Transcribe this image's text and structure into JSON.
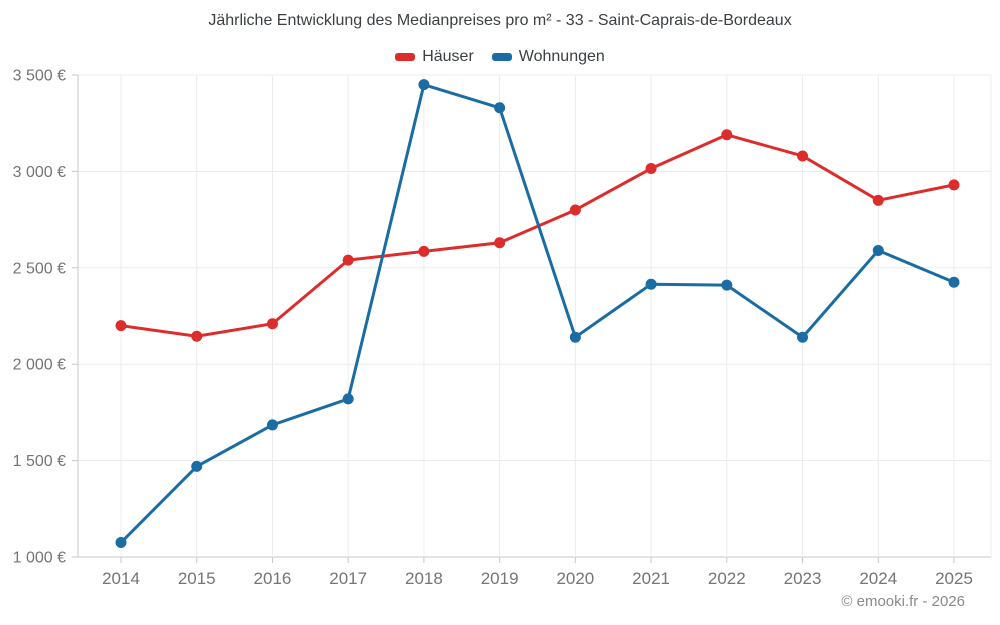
{
  "chart_data": {
    "type": "line",
    "title": "Jährliche Entwicklung des Medianpreises pro m² - 33 - Saint-Caprais-de-Bordeaux",
    "categories": [
      "2014",
      "2015",
      "2016",
      "2017",
      "2018",
      "2019",
      "2020",
      "2021",
      "2022",
      "2023",
      "2024",
      "2025"
    ],
    "series": [
      {
        "name": "Häuser",
        "color": "#dd2c2c",
        "values": [
          2200,
          2145,
          2210,
          2540,
          2585,
          2630,
          2800,
          3015,
          3190,
          3080,
          2850,
          2930
        ]
      },
      {
        "name": "Wohnungen",
        "color": "#1a6ca3",
        "values": [
          1075,
          1470,
          1685,
          1820,
          3450,
          3330,
          2140,
          2415,
          2410,
          2140,
          2590,
          2425
        ]
      }
    ],
    "ylim": [
      1000,
      3500
    ],
    "ytick_step": 500,
    "ytick_labels": [
      "1 000 €",
      "1 500 €",
      "2 000 €",
      "2 500 €",
      "3 000 €",
      "3 500 €"
    ],
    "xlabel": "",
    "ylabel": "",
    "grid": true,
    "legend_position": "top"
  },
  "footer": {
    "credit": "© emooki.fr - 2026"
  },
  "style_colors": {
    "grid": "#ececec",
    "axis": "#c8c8c8",
    "axis_text": "#757575",
    "title_text": "#3c4043",
    "footer_text": "#8a8a8a",
    "background": "#ffffff"
  }
}
